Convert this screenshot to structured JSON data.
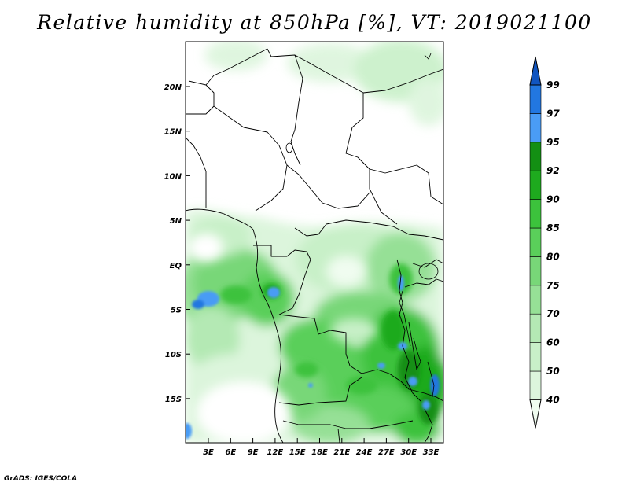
{
  "title": "Relative humidity at 850hPa [%], VT: 2019021100",
  "credit": "GrADS: IGES/COLA",
  "lat_labels": [
    "20N",
    "15N",
    "10N",
    "5N",
    "EQ",
    "5S",
    "10S",
    "15S"
  ],
  "lon_labels": [
    "3E",
    "6E",
    "9E",
    "12E",
    "15E",
    "18E",
    "21E",
    "24E",
    "27E",
    "30E",
    "33E"
  ],
  "colorbar": {
    "levels": [
      "40",
      "50",
      "60",
      "70",
      "75",
      "80",
      "85",
      "90",
      "92",
      "95",
      "97",
      "99"
    ],
    "colors": [
      "#f0fcf0",
      "#dcf5dc",
      "#c8f0c8",
      "#b4e9b4",
      "#96e096",
      "#78d778",
      "#5acf5a",
      "#3cc23c",
      "#1eaa1e",
      "#138f13",
      "#4a9cf5",
      "#2277e0",
      "#1155c0"
    ]
  }
}
